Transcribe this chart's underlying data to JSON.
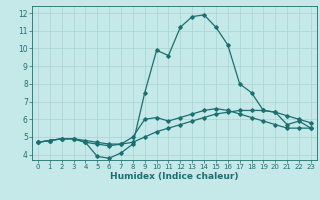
{
  "xlabel": "Humidex (Indice chaleur)",
  "xlim": [
    -0.5,
    23.5
  ],
  "ylim": [
    3.7,
    12.4
  ],
  "xticks": [
    0,
    1,
    2,
    3,
    4,
    5,
    6,
    7,
    8,
    9,
    10,
    11,
    12,
    13,
    14,
    15,
    16,
    17,
    18,
    19,
    20,
    21,
    22,
    23
  ],
  "yticks": [
    4,
    5,
    6,
    7,
    8,
    9,
    10,
    11,
    12
  ],
  "bg_color": "#c5e8e8",
  "line_color": "#1a7070",
  "grid_color": "#a8d4d4",
  "line1_x": [
    0,
    1,
    2,
    3,
    4,
    5,
    6,
    7,
    8,
    9,
    10,
    11,
    12,
    13,
    14,
    15,
    16,
    17,
    18,
    19,
    20,
    21,
    22,
    23
  ],
  "line1_y": [
    4.7,
    4.8,
    4.9,
    4.9,
    4.8,
    4.7,
    4.6,
    4.6,
    4.7,
    5.0,
    5.3,
    5.5,
    5.7,
    5.9,
    6.1,
    6.3,
    6.4,
    6.5,
    6.5,
    6.5,
    6.4,
    6.2,
    6.0,
    5.8
  ],
  "line2_x": [
    0,
    1,
    2,
    3,
    4,
    5,
    6,
    7,
    8,
    9,
    10,
    11,
    12,
    13,
    14,
    15,
    16,
    17,
    18,
    19,
    20,
    21,
    22,
    23
  ],
  "line2_y": [
    4.7,
    4.8,
    4.9,
    4.9,
    4.7,
    4.6,
    4.5,
    4.6,
    5.0,
    6.0,
    6.1,
    5.9,
    6.1,
    6.3,
    6.5,
    6.6,
    6.5,
    6.3,
    6.1,
    5.9,
    5.7,
    5.5,
    5.5,
    5.5
  ],
  "line3_x": [
    0,
    1,
    2,
    3,
    4,
    5,
    6,
    7,
    8,
    9,
    10,
    11,
    12,
    13,
    14,
    15,
    16,
    17,
    18,
    19,
    20,
    21,
    22,
    23
  ],
  "line3_y": [
    4.7,
    4.8,
    4.9,
    4.9,
    4.7,
    3.9,
    3.8,
    4.1,
    4.6,
    7.5,
    9.9,
    9.6,
    11.2,
    11.8,
    11.9,
    11.2,
    10.2,
    8.0,
    7.5,
    6.5,
    6.4,
    5.7,
    5.9,
    5.5
  ],
  "marker": "D",
  "markersize": 1.8,
  "linewidth": 0.9,
  "xtick_fontsize": 5.0,
  "ytick_fontsize": 5.5,
  "xlabel_fontsize": 6.5
}
